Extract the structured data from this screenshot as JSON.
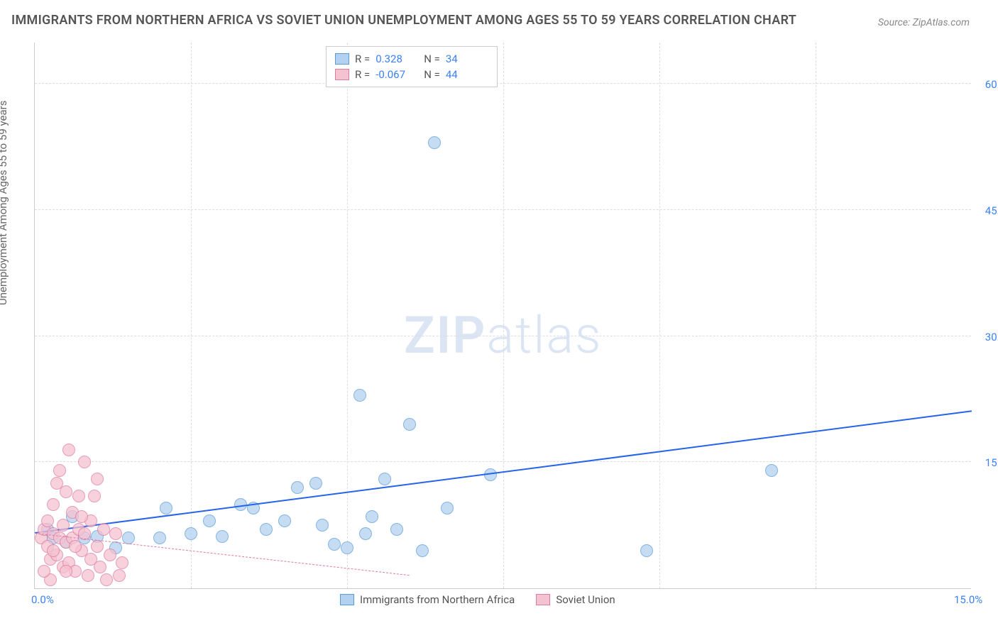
{
  "title": "IMMIGRANTS FROM NORTHERN AFRICA VS SOVIET UNION UNEMPLOYMENT AMONG AGES 55 TO 59 YEARS CORRELATION CHART",
  "source": "Source: ZipAtlas.com",
  "watermark_bold": "ZIP",
  "watermark_light": "atlas",
  "chart": {
    "type": "scatter",
    "y_label": "Unemployment Among Ages 55 to 59 years",
    "xlim": [
      0,
      15
    ],
    "ylim": [
      0,
      65
    ],
    "x_ticks": [
      {
        "v": 0,
        "label": "0.0%"
      },
      {
        "v": 15,
        "label": "15.0%"
      }
    ],
    "y_ticks": [
      {
        "v": 15,
        "label": "15.0%"
      },
      {
        "v": 30,
        "label": "30.0%"
      },
      {
        "v": 45,
        "label": "45.0%"
      },
      {
        "v": 60,
        "label": "60.0%"
      }
    ],
    "grid_color": "#dddddd",
    "background_color": "#ffffff",
    "axis_label_fontsize": 15,
    "tick_fontsize": 15,
    "tick_color": "#3b82f6",
    "x_grid_lines": [
      2.5,
      5.0,
      7.5,
      10.0,
      12.5
    ],
    "series": [
      {
        "name": "Immigrants from Northern Africa",
        "short": "blue",
        "R": "0.328",
        "N": "34",
        "fill_color": "#b3d1f0",
        "stroke_color": "#5b9bd5",
        "marker_radius": 9,
        "trend": {
          "x1": 0,
          "y1": 6.5,
          "x2": 15,
          "y2": 21.0,
          "color": "#2563eb",
          "width": 2,
          "dash": "solid"
        },
        "points": [
          {
            "x": 0.2,
            "y": 7.0
          },
          {
            "x": 0.3,
            "y": 6.0
          },
          {
            "x": 0.5,
            "y": 5.5
          },
          {
            "x": 0.6,
            "y": 8.5
          },
          {
            "x": 0.8,
            "y": 6.0
          },
          {
            "x": 1.0,
            "y": 6.2
          },
          {
            "x": 1.3,
            "y": 4.8
          },
          {
            "x": 1.5,
            "y": 6.0
          },
          {
            "x": 2.0,
            "y": 6.0
          },
          {
            "x": 2.1,
            "y": 9.5
          },
          {
            "x": 2.5,
            "y": 6.5
          },
          {
            "x": 2.8,
            "y": 8.0
          },
          {
            "x": 3.0,
            "y": 6.2
          },
          {
            "x": 3.3,
            "y": 10.0
          },
          {
            "x": 3.5,
            "y": 9.5
          },
          {
            "x": 3.7,
            "y": 7.0
          },
          {
            "x": 4.0,
            "y": 8.0
          },
          {
            "x": 4.2,
            "y": 12.0
          },
          {
            "x": 4.5,
            "y": 12.5
          },
          {
            "x": 4.6,
            "y": 7.5
          },
          {
            "x": 4.8,
            "y": 5.2
          },
          {
            "x": 5.0,
            "y": 4.8
          },
          {
            "x": 5.2,
            "y": 23.0
          },
          {
            "x": 5.3,
            "y": 6.5
          },
          {
            "x": 5.6,
            "y": 13.0
          },
          {
            "x": 5.8,
            "y": 7.0
          },
          {
            "x": 6.0,
            "y": 19.5
          },
          {
            "x": 6.2,
            "y": 4.5
          },
          {
            "x": 6.4,
            "y": 53.0
          },
          {
            "x": 6.6,
            "y": 9.5
          },
          {
            "x": 7.3,
            "y": 13.5
          },
          {
            "x": 9.8,
            "y": 4.5
          },
          {
            "x": 11.8,
            "y": 14.0
          },
          {
            "x": 5.4,
            "y": 8.5
          }
        ]
      },
      {
        "name": "Soviet Union",
        "short": "pink",
        "R": "-0.067",
        "N": "44",
        "fill_color": "#f5c2d1",
        "stroke_color": "#e07ba0",
        "marker_radius": 9,
        "trend": {
          "x1": 0,
          "y1": 6.5,
          "x2": 6.0,
          "y2": 1.5,
          "color": "#e07ba0",
          "width": 1,
          "dash": "dashed"
        },
        "points": [
          {
            "x": 0.1,
            "y": 6.0
          },
          {
            "x": 0.15,
            "y": 7.0
          },
          {
            "x": 0.2,
            "y": 5.0
          },
          {
            "x": 0.2,
            "y": 8.0
          },
          {
            "x": 0.25,
            "y": 3.5
          },
          {
            "x": 0.3,
            "y": 6.5
          },
          {
            "x": 0.3,
            "y": 10.0
          },
          {
            "x": 0.35,
            "y": 4.0
          },
          {
            "x": 0.35,
            "y": 12.5
          },
          {
            "x": 0.4,
            "y": 6.0
          },
          {
            "x": 0.4,
            "y": 14.0
          },
          {
            "x": 0.45,
            "y": 2.5
          },
          {
            "x": 0.45,
            "y": 7.5
          },
          {
            "x": 0.5,
            "y": 5.5
          },
          {
            "x": 0.5,
            "y": 11.5
          },
          {
            "x": 0.55,
            "y": 16.5
          },
          {
            "x": 0.55,
            "y": 3.0
          },
          {
            "x": 0.6,
            "y": 6.0
          },
          {
            "x": 0.6,
            "y": 9.0
          },
          {
            "x": 0.65,
            "y": 2.0
          },
          {
            "x": 0.7,
            "y": 7.0
          },
          {
            "x": 0.7,
            "y": 11.0
          },
          {
            "x": 0.75,
            "y": 4.5
          },
          {
            "x": 0.8,
            "y": 6.5
          },
          {
            "x": 0.8,
            "y": 15.0
          },
          {
            "x": 0.85,
            "y": 1.5
          },
          {
            "x": 0.9,
            "y": 8.0
          },
          {
            "x": 0.9,
            "y": 3.5
          },
          {
            "x": 0.95,
            "y": 11.0
          },
          {
            "x": 1.0,
            "y": 5.0
          },
          {
            "x": 1.0,
            "y": 13.0
          },
          {
            "x": 1.05,
            "y": 2.5
          },
          {
            "x": 1.1,
            "y": 7.0
          },
          {
            "x": 1.15,
            "y": 1.0
          },
          {
            "x": 1.2,
            "y": 4.0
          },
          {
            "x": 1.3,
            "y": 6.5
          },
          {
            "x": 1.35,
            "y": 1.5
          },
          {
            "x": 1.4,
            "y": 3.0
          },
          {
            "x": 0.25,
            "y": 1.0
          },
          {
            "x": 0.15,
            "y": 2.0
          },
          {
            "x": 0.3,
            "y": 4.5
          },
          {
            "x": 0.5,
            "y": 2.0
          },
          {
            "x": 0.65,
            "y": 5.0
          },
          {
            "x": 0.75,
            "y": 8.5
          }
        ]
      }
    ]
  },
  "legend_top": {
    "R_label": "R =",
    "N_label": "N ="
  }
}
